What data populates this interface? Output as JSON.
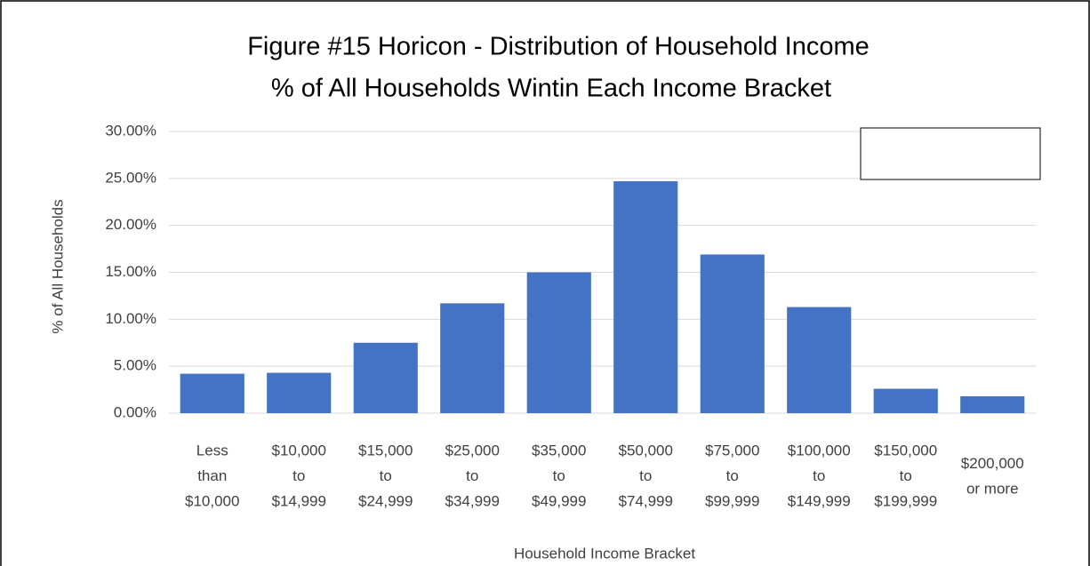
{
  "chart_data": {
    "type": "bar",
    "title": [
      "Figure #15  Horicon - Distribution of Household Income",
      "% of All Households Wintin Each Income Bracket"
    ],
    "x_label": "Household Income Bracket",
    "y_label": "% of All Households",
    "categories": [
      [
        "Less",
        "than",
        "$10,000"
      ],
      [
        "$10,000",
        "to",
        "$14,999"
      ],
      [
        "$15,000",
        "to",
        "$24,999"
      ],
      [
        "$25,000",
        "to",
        "$34,999"
      ],
      [
        "$35,000",
        "to",
        "$49,999"
      ],
      [
        "$50,000",
        "to",
        "$74,999"
      ],
      [
        "$75,000",
        "to",
        "$99,999"
      ],
      [
        "$100,000",
        "to",
        "$149,999"
      ],
      [
        "$150,000",
        "to",
        "$199,999"
      ],
      [
        "$200,000",
        "or more"
      ]
    ],
    "values": [
      4.2,
      4.3,
      7.5,
      11.7,
      15.0,
      24.7,
      16.9,
      11.3,
      2.6,
      1.8
    ],
    "color": "#4472c4",
    "ylim": [
      0,
      30
    ],
    "yticks": [
      {
        "value": 0,
        "label": "0.00%"
      },
      {
        "value": 5,
        "label": "5.00%"
      },
      {
        "value": 10,
        "label": "10.00%"
      },
      {
        "value": 15,
        "label": "15.00%"
      },
      {
        "value": 20,
        "label": "20.00%"
      },
      {
        "value": 25,
        "label": "25.00%"
      },
      {
        "value": 30,
        "label": "30.00%"
      }
    ],
    "grid": true
  }
}
